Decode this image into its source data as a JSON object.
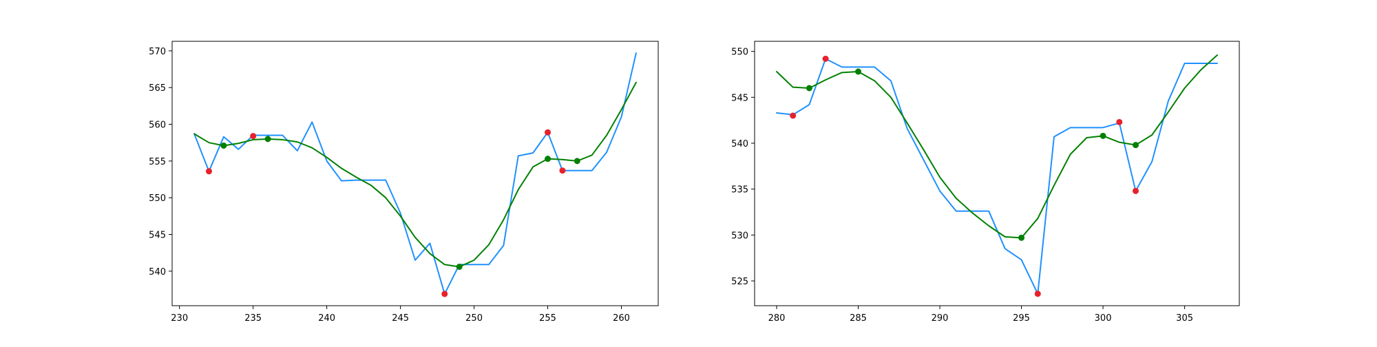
{
  "chart_data": [
    {
      "type": "line",
      "title": "",
      "xlabel": "",
      "ylabel": "",
      "xlim": [
        229.5,
        262.5
      ],
      "ylim": [
        535.3,
        571.3
      ],
      "xticks": [
        230,
        235,
        240,
        245,
        250,
        255,
        260
      ],
      "yticks": [
        540,
        545,
        550,
        555,
        560,
        565,
        570
      ],
      "grid": false,
      "series": [
        {
          "color": "#1e90ff",
          "x": [
            231,
            232,
            233,
            234,
            235,
            236,
            237,
            238,
            239,
            240,
            241,
            242,
            243,
            244,
            245,
            246,
            247,
            248,
            249,
            250,
            251,
            252,
            253,
            254,
            255,
            256,
            257,
            258,
            259,
            260,
            261
          ],
          "y": [
            558.7,
            553.6,
            558.3,
            556.6,
            558.5,
            558.5,
            558.5,
            556.4,
            560.3,
            555.0,
            552.3,
            552.4,
            552.4,
            552.4,
            547.9,
            541.5,
            543.8,
            536.9,
            540.9,
            540.9,
            540.9,
            543.5,
            555.7,
            556.1,
            558.9,
            553.7,
            553.7,
            553.7,
            556.2,
            561.0,
            569.7
          ]
        },
        {
          "color": "#008000",
          "x": [
            231,
            232,
            233,
            234,
            235,
            236,
            237,
            238,
            239,
            240,
            241,
            242,
            243,
            244,
            245,
            246,
            247,
            248,
            249,
            250,
            251,
            252,
            253,
            254,
            255,
            256,
            257,
            258,
            259,
            260,
            261
          ],
          "y": [
            558.7,
            557.5,
            557.1,
            557.4,
            557.9,
            558.0,
            557.9,
            557.6,
            556.8,
            555.5,
            554.0,
            552.8,
            551.7,
            550.0,
            547.5,
            544.6,
            542.4,
            540.9,
            540.6,
            541.5,
            543.6,
            547.0,
            551.1,
            554.2,
            555.3,
            555.2,
            555.0,
            555.8,
            558.5,
            562.0,
            565.7
          ]
        }
      ],
      "markers": [
        {
          "color": "#e8212b",
          "points": [
            [
              232,
              553.6
            ],
            [
              235,
              558.4
            ],
            [
              248,
              536.9
            ],
            [
              255,
              558.9
            ],
            [
              256,
              553.7
            ]
          ]
        },
        {
          "color": "#008000",
          "points": [
            [
              233,
              557.1
            ],
            [
              236,
              558.0
            ],
            [
              249,
              540.6
            ],
            [
              255,
              555.3
            ],
            [
              257,
              555.0
            ]
          ]
        }
      ]
    },
    {
      "type": "line",
      "title": "",
      "xlabel": "",
      "ylabel": "",
      "xlim": [
        278.65,
        308.35
      ],
      "ylim": [
        522.3,
        551.1
      ],
      "xticks": [
        280,
        285,
        290,
        295,
        300,
        305
      ],
      "yticks": [
        525,
        530,
        535,
        540,
        545,
        550
      ],
      "grid": false,
      "series": [
        {
          "color": "#1e90ff",
          "x": [
            280,
            281,
            282,
            283,
            284,
            285,
            286,
            287,
            288,
            289,
            290,
            291,
            292,
            293,
            294,
            295,
            296,
            297,
            298,
            299,
            300,
            301,
            302,
            303,
            304,
            305,
            306,
            307
          ],
          "y": [
            543.3,
            543.1,
            544.2,
            549.2,
            548.3,
            548.3,
            548.3,
            546.8,
            541.6,
            538.2,
            534.8,
            532.6,
            532.6,
            532.6,
            528.5,
            527.3,
            523.6,
            540.7,
            541.7,
            541.7,
            541.7,
            542.2,
            534.8,
            538.0,
            544.6,
            548.7,
            548.7,
            548.7
          ]
        },
        {
          "color": "#008000",
          "x": [
            280,
            281,
            282,
            283,
            284,
            285,
            286,
            287,
            288,
            289,
            290,
            291,
            292,
            293,
            294,
            295,
            296,
            297,
            298,
            299,
            300,
            301,
            302,
            303,
            304,
            305,
            306,
            307
          ],
          "y": [
            547.8,
            546.1,
            546.0,
            546.9,
            547.7,
            547.8,
            546.8,
            545.0,
            542.2,
            539.3,
            536.3,
            534.0,
            532.4,
            531.0,
            529.8,
            529.7,
            531.8,
            535.4,
            538.8,
            540.6,
            540.8,
            540.1,
            539.8,
            540.9,
            543.4,
            546.0,
            548.0,
            549.6
          ]
        }
      ],
      "markers": [
        {
          "color": "#e8212b",
          "points": [
            [
              281,
              543.0
            ],
            [
              283,
              549.2
            ],
            [
              296,
              523.6
            ],
            [
              301,
              542.3
            ],
            [
              302,
              534.8
            ]
          ]
        },
        {
          "color": "#008000",
          "points": [
            [
              282,
              546.0
            ],
            [
              285,
              547.8
            ],
            [
              295,
              529.7
            ],
            [
              300,
              540.8
            ],
            [
              302,
              539.8
            ]
          ]
        }
      ]
    }
  ]
}
